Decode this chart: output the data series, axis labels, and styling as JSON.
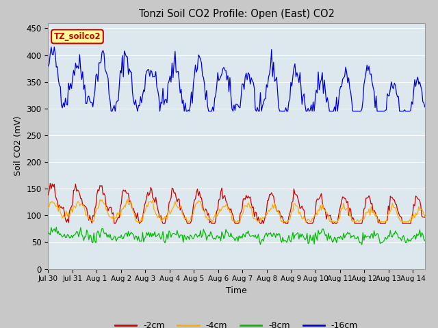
{
  "title": "Tonzi Soil CO2 Profile: Open (East) CO2",
  "xlabel": "Time",
  "ylabel": "Soil CO2 (mV)",
  "ylim": [
    0,
    460
  ],
  "annotation_text": "TZ_soilco2",
  "annotation_color": "#cc0000",
  "annotation_bg": "#ffff99",
  "fig_bg_color": "#c8c8c8",
  "plot_bg_color": "#e0e0e0",
  "plot_upper_bg": "#dce8f0",
  "legend_labels": [
    "-2cm",
    "-4cm",
    "-8cm",
    "-16cm"
  ],
  "line_colors": [
    "#cc0000",
    "#ffaa00",
    "#00bb00",
    "#0000dd"
  ],
  "x_tick_labels": [
    "Jul 30",
    "Jul 31",
    "Aug 1",
    "Aug 2",
    "Aug 3",
    "Aug 4",
    "Aug 5",
    "Aug 6",
    "Aug 7",
    "Aug 8",
    "Aug 9",
    "Aug 10",
    "Aug 11",
    "Aug 12",
    "Aug 13",
    "Aug 14"
  ],
  "seed": 42
}
